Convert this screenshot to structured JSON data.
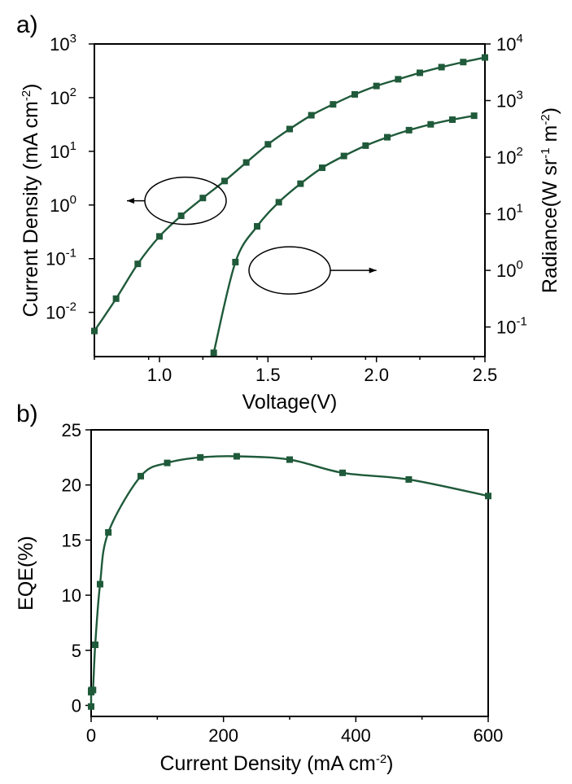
{
  "chart_data": [
    {
      "panel": "a)",
      "type": "line",
      "title": "",
      "xlabel": "Voltage(V)",
      "ylabel_left": {
        "base": "Current Density (mA cm",
        "sup": "-2",
        "tail": ")"
      },
      "ylabel_right": {
        "base": "Radiance(W sr",
        "sup1": "-1",
        "mid": " m",
        "sup2": "-2",
        "tail": ")"
      },
      "xlim": [
        0.7,
        2.5
      ],
      "ylim_left": [
        0.0015,
        1000
      ],
      "ylim_right": [
        0.03,
        10000
      ],
      "yscale_left": "log",
      "yscale_right": "log",
      "xticks": [
        1.0,
        1.5,
        2.0,
        2.5
      ],
      "xtick_labels": [
        "1.0",
        "1.5",
        "2.0",
        "2.5"
      ],
      "yticks_left": [
        {
          "value": 0.01,
          "base": "10",
          "exp": "-2"
        },
        {
          "value": 0.1,
          "base": "10",
          "exp": "-1"
        },
        {
          "value": 1,
          "base": "10",
          "exp": "0"
        },
        {
          "value": 10,
          "base": "10",
          "exp": "1"
        },
        {
          "value": 100,
          "base": "10",
          "exp": "2"
        },
        {
          "value": 1000,
          "base": "10",
          "exp": "3"
        }
      ],
      "yticks_right": [
        {
          "value": 0.1,
          "base": "10",
          "exp": "-1"
        },
        {
          "value": 1,
          "base": "10",
          "exp": "0"
        },
        {
          "value": 10,
          "base": "10",
          "exp": "1"
        },
        {
          "value": 100,
          "base": "10",
          "exp": "2"
        },
        {
          "value": 1000,
          "base": "10",
          "exp": "3"
        },
        {
          "value": 10000,
          "base": "10",
          "exp": "4"
        }
      ],
      "color": "#1f5a3a",
      "series": [
        {
          "axis": "left",
          "x": [
            0.7,
            0.8,
            0.9,
            1.0,
            1.1,
            1.2,
            1.3,
            1.4,
            1.5,
            1.6,
            1.7,
            1.8,
            1.9,
            2.0,
            2.1,
            2.2,
            2.3,
            2.4,
            2.5
          ],
          "y": [
            0.0045,
            0.018,
            0.08,
            0.26,
            0.63,
            1.35,
            2.8,
            6.2,
            13.5,
            26,
            47,
            75,
            115,
            165,
            220,
            290,
            370,
            460,
            560
          ]
        },
        {
          "axis": "right",
          "x": [
            1.25,
            1.35,
            1.45,
            1.55,
            1.65,
            1.75,
            1.85,
            1.95,
            2.05,
            2.15,
            2.25,
            2.35,
            2.45
          ],
          "y": [
            0.035,
            1.4,
            6.0,
            16,
            34,
            65,
            105,
            160,
            225,
            300,
            380,
            460,
            540
          ]
        }
      ],
      "annotations": [
        {
          "type": "ellipse-arrow",
          "series_axis": "left",
          "center": [
            1.12,
            1.2
          ],
          "arrow_to": [
            0.85,
            1.0
          ]
        },
        {
          "type": "ellipse-arrow",
          "series_axis": "right",
          "center": [
            1.6,
            1.0
          ],
          "arrow_to": [
            2.0,
            0.83
          ]
        }
      ]
    },
    {
      "panel": "b)",
      "type": "line",
      "title": "",
      "xlabel": {
        "base": "Current Density (mA cm",
        "sup": "-2",
        "tail": ")"
      },
      "ylabel": "EQE(%)",
      "xlim": [
        0,
        600
      ],
      "ylim": [
        -1,
        25
      ],
      "xticks": [
        0,
        200,
        400,
        600
      ],
      "xtick_labels": [
        "0",
        "200",
        "400",
        "600"
      ],
      "yticks": [
        0,
        5,
        10,
        15,
        20,
        25
      ],
      "ytick_labels": [
        "0",
        "5",
        "10",
        "15",
        "20",
        "25"
      ],
      "color": "#1f5a3a",
      "series": [
        {
          "x": [
            0.005,
            0.02,
            0.08,
            0.26,
            0.63,
            1.35,
            2.8,
            6.2,
            13.5,
            26,
            75,
            115,
            165,
            220,
            300,
            380,
            480,
            600
          ],
          "y": [
            -0.1,
            1.2,
            1.3,
            1.3,
            1.4,
            1.4,
            1.4,
            5.5,
            11.0,
            15.7,
            20.8,
            22.0,
            22.5,
            22.6,
            22.3,
            21.1,
            20.5,
            19.0
          ]
        }
      ]
    }
  ]
}
